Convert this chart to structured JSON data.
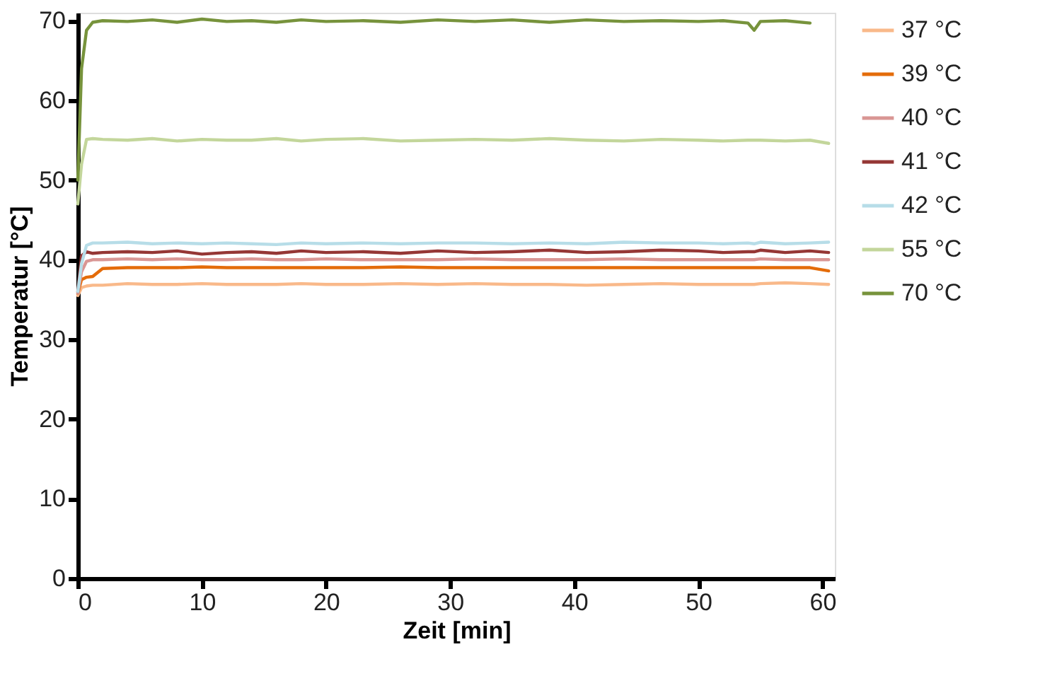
{
  "chart_data": {
    "type": "line",
    "xlabel": "Zeit [min]",
    "ylabel": "Temperatur [°C]",
    "xlim": [
      0,
      61
    ],
    "xticks": [
      0,
      10,
      20,
      30,
      40,
      50,
      60
    ],
    "ylim": [
      0,
      71
    ],
    "yticks": [
      0,
      10,
      20,
      30,
      40,
      50,
      60,
      70
    ],
    "grid": false,
    "legend": "right",
    "marker": "none",
    "line_style": "solid",
    "x": [
      0,
      0.3,
      0.7,
      1.2,
      2,
      4,
      6,
      8,
      10,
      12,
      14,
      16,
      18,
      20,
      23,
      26,
      29,
      32,
      35,
      38,
      41,
      44,
      47,
      50,
      52,
      54,
      54.5,
      55,
      57,
      59,
      60.5
    ],
    "series": [
      {
        "name": "37 °C",
        "color": "#f9b98a",
        "values": [
          35.5,
          36.5,
          36.7,
          36.8,
          36.8,
          37.0,
          36.9,
          36.9,
          37.0,
          36.9,
          36.9,
          36.9,
          37.0,
          36.9,
          36.9,
          37.0,
          36.9,
          37.0,
          36.9,
          36.9,
          36.8,
          36.9,
          37.0,
          36.9,
          36.9,
          36.9,
          36.9,
          37.0,
          37.1,
          37.0,
          36.9
        ]
      },
      {
        "name": "39 °C",
        "color": "#e46c0a",
        "values": [
          35.8,
          37.5,
          37.8,
          37.9,
          38.9,
          39.0,
          39.0,
          39.0,
          39.1,
          39.0,
          39.0,
          39.0,
          39.0,
          39.0,
          39.0,
          39.1,
          39.0,
          39.0,
          39.0,
          39.0,
          39.0,
          39.0,
          39.0,
          39.0,
          39.0,
          39.0,
          39.0,
          39.0,
          39.0,
          39.0,
          38.6
        ]
      },
      {
        "name": "40 °C",
        "color": "#d99694",
        "values": [
          35.8,
          38.5,
          39.8,
          40.0,
          40.0,
          40.1,
          40.0,
          40.1,
          40.0,
          40.0,
          40.1,
          40.0,
          40.0,
          40.1,
          40.0,
          40.0,
          40.0,
          40.1,
          40.0,
          40.0,
          40.0,
          40.1,
          40.0,
          40.0,
          40.0,
          40.0,
          40.0,
          40.1,
          40.0,
          40.0,
          40.0
        ]
      },
      {
        "name": "41 °C",
        "color": "#953735",
        "values": [
          36.0,
          40.5,
          41.0,
          40.8,
          40.9,
          41.0,
          40.9,
          41.1,
          40.7,
          40.9,
          41.0,
          40.8,
          41.1,
          40.9,
          41.0,
          40.8,
          41.1,
          40.9,
          41.0,
          41.2,
          40.9,
          41.0,
          41.2,
          41.1,
          40.9,
          41.0,
          41.0,
          41.2,
          40.9,
          41.1,
          40.9
        ]
      },
      {
        "name": "42 °C",
        "color": "#b7dde8",
        "values": [
          36.0,
          39.5,
          41.8,
          42.1,
          42.1,
          42.2,
          42.0,
          42.1,
          42.0,
          42.1,
          42.0,
          41.9,
          42.1,
          42.0,
          42.1,
          42.0,
          42.1,
          42.1,
          42.0,
          42.1,
          42.0,
          42.2,
          42.1,
          42.1,
          42.0,
          42.1,
          42.0,
          42.2,
          42.0,
          42.1,
          42.2
        ]
      },
      {
        "name": "55 °C",
        "color": "#c3d69b",
        "values": [
          47.0,
          52.0,
          55.1,
          55.2,
          55.1,
          55.0,
          55.2,
          54.9,
          55.1,
          55.0,
          55.0,
          55.2,
          54.9,
          55.1,
          55.2,
          54.9,
          55.0,
          55.1,
          55.0,
          55.2,
          55.0,
          54.9,
          55.1,
          55.0,
          54.9,
          55.0,
          55.0,
          55.0,
          54.9,
          55.0,
          54.6
        ]
      },
      {
        "name": "70 °C",
        "color": "#77933c",
        "values": [
          50.0,
          64.0,
          68.8,
          69.8,
          70.0,
          69.9,
          70.1,
          69.8,
          70.2,
          69.9,
          70.0,
          69.8,
          70.1,
          69.9,
          70.0,
          69.8,
          70.1,
          69.9,
          70.1,
          69.8,
          70.1,
          69.9,
          70.0,
          69.9,
          70.0,
          69.7,
          68.8,
          69.9,
          70.0,
          69.7,
          null
        ]
      }
    ]
  }
}
